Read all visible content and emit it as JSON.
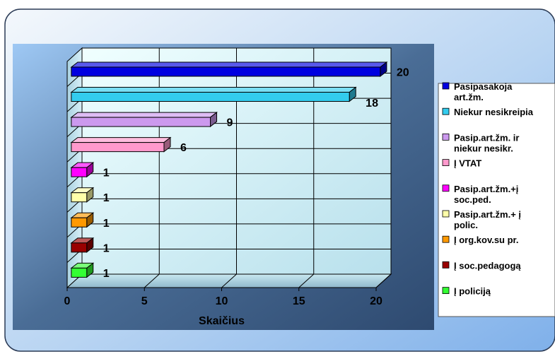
{
  "chart_data": {
    "type": "bar",
    "orientation": "horizontal",
    "three_d": true,
    "categories": [
      "Pasipasakoja art.žm.",
      "Niekur nesikreipia",
      "Pasip.art.žm. ir niekur nesikr.",
      "Į VTAT",
      "Pasip.art.žm.+į soc.ped.",
      "Pasip.art.žm.+ į polic.",
      "Į org.kov.su pr.",
      "Į soc.pedagogą",
      "Į policiją"
    ],
    "values": [
      20,
      18,
      9,
      6,
      1,
      1,
      1,
      1,
      1
    ],
    "colors": [
      "#0000e0",
      "#33ccee",
      "#cc99ee",
      "#ff99cc",
      "#ff00ff",
      "#ffffaa",
      "#ff9900",
      "#990000",
      "#33ff33"
    ],
    "legend": [
      {
        "lines": [
          "Pasipasakoja",
          "art.žm."
        ],
        "color": "#0000e0"
      },
      {
        "lines": [
          "Niekur nesikreipia"
        ],
        "color": "#33ccee"
      },
      {
        "lines": [
          "Pasip.art.žm. ir",
          "niekur nesikr."
        ],
        "color": "#cc99ee"
      },
      {
        "lines": [
          "Į VTAT"
        ],
        "color": "#ff99cc"
      },
      {
        "lines": [
          "Pasip.art.žm.+į",
          "soc.ped."
        ],
        "color": "#ff00ff"
      },
      {
        "lines": [
          "Pasip.art.žm.+ į",
          "polic."
        ],
        "color": "#ffffaa"
      },
      {
        "lines": [
          "Į org.kov.su pr."
        ],
        "color": "#ff9900"
      },
      {
        "lines": [
          "Į soc.pedagogą"
        ],
        "color": "#990000"
      },
      {
        "lines": [
          "Į policiją"
        ],
        "color": "#33ff33"
      }
    ],
    "xlabel": "Skaičius",
    "xlim": [
      0,
      20
    ],
    "xticks": [
      0,
      5,
      10,
      15,
      20
    ],
    "grid": true,
    "legend_position": "right"
  }
}
